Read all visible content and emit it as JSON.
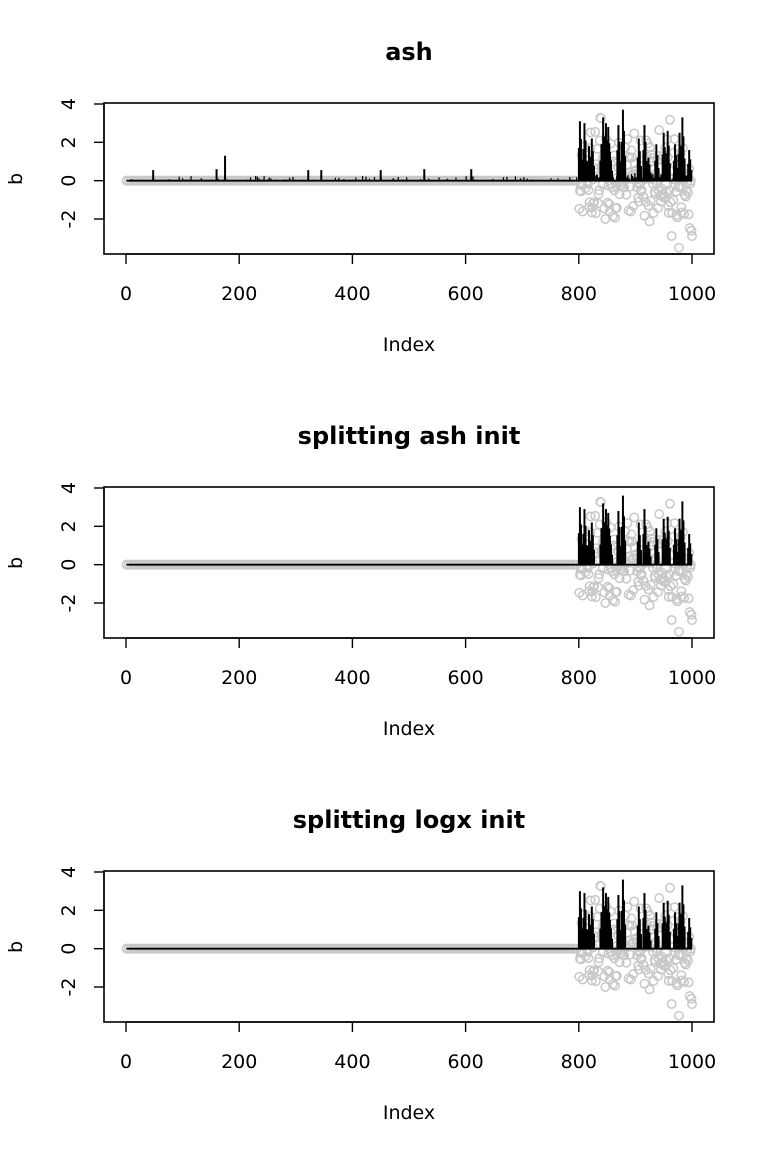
{
  "chart_data": [
    {
      "type": "scatter",
      "title": "ash",
      "xlabel": "Index",
      "ylabel": "b",
      "xlim": [
        0,
        1000
      ],
      "ylim": [
        -3.8,
        4
      ],
      "xticks": [
        "0",
        "200",
        "400",
        "600",
        "800",
        "1000"
      ],
      "yticks": [
        "-2",
        "0",
        "2",
        "4"
      ],
      "grid": false,
      "series": [
        {
          "role": "observed points (gray circles)",
          "color": "#c8c8c8",
          "nonzero_x_range": [
            800,
            1000
          ],
          "zero_x_range": [
            1,
            800
          ]
        },
        {
          "role": "estimate (black vertical lines)",
          "color": "#000000",
          "spikes": [
            [
              48,
              0.55
            ],
            [
              160,
              0.6
            ],
            [
              175,
              1.3
            ],
            [
              322,
              0.55
            ],
            [
              345,
              0.55
            ],
            [
              450,
              0.55
            ],
            [
              527,
              0.6
            ],
            [
              610,
              0.6
            ],
            [
              802,
              3.1
            ],
            [
              810,
              3.0
            ],
            [
              818,
              1.8
            ],
            [
              823,
              2.2
            ],
            [
              840,
              1.9
            ],
            [
              843,
              3.3
            ],
            [
              848,
              3.0
            ],
            [
              852,
              2.8
            ],
            [
              855,
              1.5
            ],
            [
              870,
              2.9
            ],
            [
              878,
              3.7
            ],
            [
              906,
              2.2
            ],
            [
              916,
              2.9
            ],
            [
              923,
              1.2
            ],
            [
              937,
              1.9
            ],
            [
              950,
              2.5
            ],
            [
              957,
              2.6
            ],
            [
              970,
              1.9
            ],
            [
              978,
              2.5
            ],
            [
              983,
              3.3
            ],
            [
              995,
              1.6
            ]
          ],
          "background_noise": "small positive bumps below 0.3 across index 1-800"
        }
      ]
    },
    {
      "type": "scatter",
      "title": "splitting ash init",
      "xlabel": "Index",
      "ylabel": "b",
      "xlim": [
        0,
        1000
      ],
      "ylim": [
        -3.8,
        4
      ],
      "xticks": [
        "0",
        "200",
        "400",
        "600",
        "800",
        "1000"
      ],
      "yticks": [
        "-2",
        "0",
        "2",
        "4"
      ],
      "grid": false,
      "series": [
        {
          "role": "observed points (gray circles)",
          "color": "#c8c8c8",
          "nonzero_x_range": [
            800,
            1000
          ],
          "zero_x_range": [
            1,
            800
          ]
        },
        {
          "role": "estimate (black vertical lines)",
          "color": "#000000",
          "spikes": [
            [
              802,
              3.0
            ],
            [
              810,
              2.9
            ],
            [
              818,
              1.8
            ],
            [
              823,
              2.2
            ],
            [
              840,
              1.9
            ],
            [
              843,
              3.2
            ],
            [
              848,
              2.9
            ],
            [
              852,
              2.7
            ],
            [
              855,
              1.5
            ],
            [
              870,
              2.8
            ],
            [
              878,
              3.6
            ],
            [
              906,
              2.2
            ],
            [
              916,
              2.9
            ],
            [
              923,
              1.2
            ],
            [
              937,
              1.9
            ],
            [
              950,
              2.4
            ],
            [
              957,
              2.5
            ],
            [
              970,
              1.9
            ],
            [
              978,
              2.4
            ],
            [
              983,
              3.3
            ],
            [
              995,
              1.6
            ]
          ],
          "background_noise": "none"
        }
      ]
    },
    {
      "type": "scatter",
      "title": "splitting logx init",
      "xlabel": "Index",
      "ylabel": "b",
      "xlim": [
        0,
        1000
      ],
      "ylim": [
        -3.8,
        4
      ],
      "xticks": [
        "0",
        "200",
        "400",
        "600",
        "800",
        "1000"
      ],
      "yticks": [
        "-2",
        "0",
        "2",
        "4"
      ],
      "grid": false,
      "series": [
        {
          "role": "observed points (gray circles)",
          "color": "#c8c8c8",
          "nonzero_x_range": [
            800,
            1000
          ],
          "zero_x_range": [
            1,
            800
          ]
        },
        {
          "role": "estimate (black vertical lines)",
          "color": "#000000",
          "spikes": [
            [
              802,
              3.0
            ],
            [
              810,
              2.9
            ],
            [
              818,
              1.8
            ],
            [
              823,
              2.2
            ],
            [
              840,
              1.9
            ],
            [
              843,
              3.2
            ],
            [
              848,
              2.9
            ],
            [
              852,
              2.7
            ],
            [
              855,
              1.5
            ],
            [
              870,
              2.8
            ],
            [
              878,
              3.6
            ],
            [
              906,
              2.2
            ],
            [
              916,
              2.9
            ],
            [
              923,
              1.2
            ],
            [
              937,
              1.9
            ],
            [
              950,
              2.4
            ],
            [
              957,
              2.5
            ],
            [
              970,
              1.9
            ],
            [
              978,
              2.4
            ],
            [
              983,
              3.3
            ],
            [
              995,
              1.6
            ]
          ],
          "background_noise": "none"
        }
      ]
    }
  ]
}
